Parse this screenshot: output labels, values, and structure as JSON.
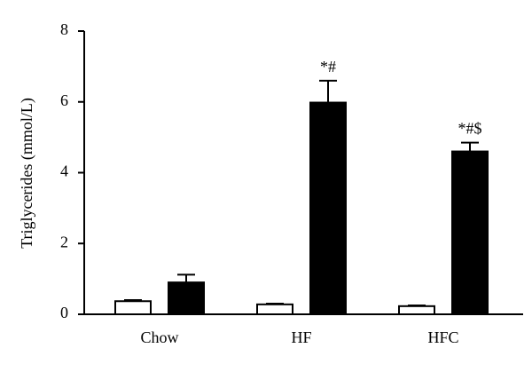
{
  "chart_data": {
    "type": "bar",
    "y_label": "Triglycerides (mmol/L)",
    "categories": [
      "Chow",
      "HF",
      "HFC"
    ],
    "series": [
      {
        "color": "#ffffff",
        "values": [
          0.37,
          0.28,
          0.23
        ],
        "errors": [
          0.03,
          0.02,
          0.02
        ],
        "annotations": [
          null,
          null,
          null
        ]
      },
      {
        "color": "#000000",
        "values": [
          0.9,
          5.98,
          4.6
        ],
        "errors": [
          0.22,
          0.62,
          0.25
        ],
        "annotations": [
          null,
          "*#",
          "*#$"
        ]
      }
    ],
    "ylim": [
      0,
      8
    ],
    "yticks": [
      0,
      2,
      4,
      6,
      8
    ]
  }
}
